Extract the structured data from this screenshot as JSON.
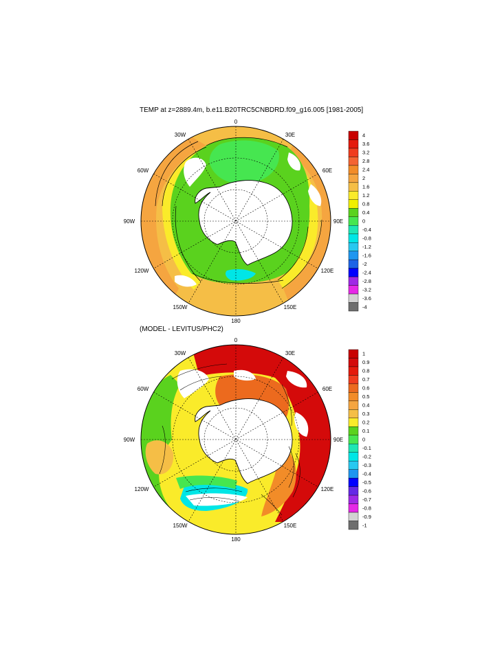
{
  "panels": [
    {
      "id": "temp",
      "title": "TEMP at z=2889.4m, b.e11.B20TRC5CNBDRD.f09_g16.005 [1981-2005]",
      "lon_labels": [
        "0",
        "30E",
        "60E",
        "90E",
        "120E",
        "150E",
        "180",
        "150W",
        "120W",
        "90W",
        "60W",
        "30W"
      ],
      "colorbar": {
        "labels": [
          "4",
          "3.6",
          "3.2",
          "2.8",
          "2.4",
          "2",
          "1.6",
          "1.2",
          "0.8",
          "0.4",
          "0",
          "-0.4",
          "-0.8",
          "-1.2",
          "-1.6",
          "-2",
          "-2.4",
          "-2.8",
          "-3.2",
          "-3.6",
          "-4"
        ],
        "colors": [
          "#c80000",
          "#e41a0c",
          "#f03c1e",
          "#f46432",
          "#f28c28",
          "#f5a540",
          "#f5be46",
          "#faeb2a",
          "#f0f000",
          "#5ad21e",
          "#46e650",
          "#1ee6b4",
          "#00e6e6",
          "#28c8f0",
          "#1e96f0",
          "#1e64e6",
          "#0000ff",
          "#a028e6",
          "#e628e6",
          "#d2d2d2",
          "#6e6e6e"
        ]
      }
    },
    {
      "id": "diff",
      "title": "(MODEL - LEVITUS/PHC2)",
      "lon_labels": [
        "0",
        "30E",
        "60E",
        "90E",
        "120E",
        "150E",
        "180",
        "150W",
        "120W",
        "90W",
        "60W",
        "30W"
      ],
      "colorbar": {
        "labels": [
          "1",
          "0.9",
          "0.8",
          "0.7",
          "0.6",
          "0.5",
          "0.4",
          "0.3",
          "0.2",
          "0.1",
          "0",
          "-0.1",
          "-0.2",
          "-0.3",
          "-0.4",
          "-0.5",
          "-0.6",
          "-0.7",
          "-0.8",
          "-0.9",
          "-1"
        ],
        "colors": [
          "#c80000",
          "#d40a0a",
          "#e41a0c",
          "#f03c1e",
          "#ec6a1e",
          "#f28c28",
          "#f5a540",
          "#f5be46",
          "#faeb2a",
          "#5ad21e",
          "#46e650",
          "#1ee6b4",
          "#00e6e6",
          "#28c8f0",
          "#1e96f0",
          "#0000ff",
          "#6428e6",
          "#a028e6",
          "#e628e6",
          "#d2d2d2",
          "#6e6e6e"
        ]
      }
    }
  ]
}
